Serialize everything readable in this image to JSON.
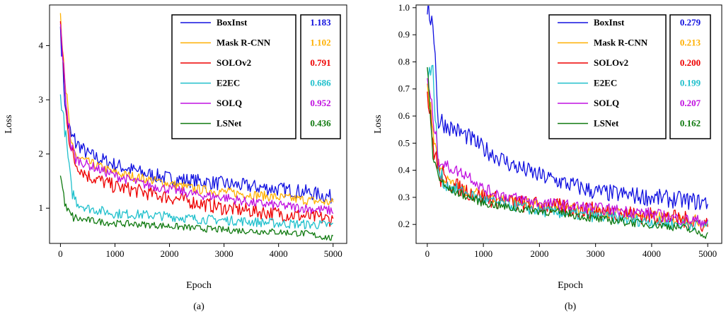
{
  "colors": {
    "BoxInst": "#1010e0",
    "Mask R-CNN": "#ffb000",
    "SOLOv2": "#ee0000",
    "E2EC": "#20c0cc",
    "SOLQ": "#c010e0",
    "LSNet": "#107a10"
  },
  "chart_data": [
    {
      "type": "line",
      "caption": "(a)",
      "xlabel": "Epoch",
      "ylabel": "Loss",
      "xlim": [
        -200,
        5250
      ],
      "ylim": [
        0.35,
        4.75
      ],
      "xticks": [
        0,
        1000,
        2000,
        3000,
        4000,
        5000
      ],
      "yticks": [
        1,
        2,
        3,
        4
      ],
      "legend_placement": "top-right",
      "x": [
        0,
        100,
        200,
        300,
        500,
        750,
        1000,
        1500,
        2000,
        2500,
        3000,
        3500,
        4000,
        4500,
        5000
      ],
      "series": [
        {
          "name": "BoxInst",
          "value_label": "1.183",
          "values": [
            4.35,
            2.7,
            2.3,
            2.2,
            2.0,
            1.9,
            1.8,
            1.65,
            1.55,
            1.5,
            1.45,
            1.4,
            1.35,
            1.3,
            1.2
          ]
        },
        {
          "name": "Mask R-CNN",
          "value_label": "1.102",
          "values": [
            4.6,
            3.2,
            2.1,
            1.95,
            1.85,
            1.75,
            1.65,
            1.55,
            1.45,
            1.35,
            1.3,
            1.25,
            1.2,
            1.15,
            1.1
          ]
        },
        {
          "name": "SOLOv2",
          "value_label": "0.791",
          "values": [
            4.45,
            2.9,
            2.0,
            1.8,
            1.6,
            1.5,
            1.4,
            1.3,
            1.2,
            1.1,
            1.0,
            0.95,
            0.9,
            0.85,
            0.79
          ]
        },
        {
          "name": "E2EC",
          "value_label": "0.686",
          "values": [
            3.1,
            2.3,
            1.35,
            1.1,
            1.0,
            0.95,
            0.9,
            0.88,
            0.85,
            0.8,
            0.78,
            0.75,
            0.72,
            0.7,
            0.69
          ]
        },
        {
          "name": "SOLQ",
          "value_label": "0.952",
          "values": [
            4.4,
            3.0,
            2.1,
            1.9,
            1.8,
            1.7,
            1.6,
            1.45,
            1.35,
            1.25,
            1.2,
            1.1,
            1.05,
            1.0,
            0.95
          ]
        },
        {
          "name": "LSNet",
          "value_label": "0.436",
          "values": [
            1.6,
            1.0,
            0.85,
            0.8,
            0.78,
            0.75,
            0.72,
            0.7,
            0.67,
            0.63,
            0.6,
            0.58,
            0.56,
            0.53,
            0.44
          ]
        }
      ]
    },
    {
      "type": "line",
      "caption": "(b)",
      "xlabel": "Epoch",
      "ylabel": "Loss",
      "xlim": [
        -200,
        5250
      ],
      "ylim": [
        0.13,
        1.01
      ],
      "xticks": [
        0,
        1000,
        2000,
        3000,
        4000,
        5000
      ],
      "yticks": [
        0.2,
        0.3,
        0.4,
        0.5,
        0.6,
        0.7,
        0.8,
        0.9,
        1.0
      ],
      "legend_placement": "top-right",
      "x": [
        0,
        100,
        200,
        300,
        500,
        750,
        1000,
        1500,
        2000,
        2500,
        3000,
        3500,
        4000,
        4500,
        5000
      ],
      "series": [
        {
          "name": "BoxInst",
          "value_label": "0.279",
          "values": [
            0.975,
            0.97,
            0.58,
            0.57,
            0.55,
            0.52,
            0.48,
            0.42,
            0.38,
            0.35,
            0.32,
            0.31,
            0.3,
            0.29,
            0.28
          ]
        },
        {
          "name": "Mask R-CNN",
          "value_label": "0.213",
          "values": [
            0.72,
            0.55,
            0.42,
            0.37,
            0.34,
            0.32,
            0.31,
            0.29,
            0.27,
            0.26,
            0.25,
            0.24,
            0.23,
            0.22,
            0.21
          ]
        },
        {
          "name": "SOLOv2",
          "value_label": "0.200",
          "values": [
            0.69,
            0.5,
            0.4,
            0.36,
            0.34,
            0.32,
            0.3,
            0.28,
            0.27,
            0.26,
            0.25,
            0.24,
            0.23,
            0.22,
            0.2
          ]
        },
        {
          "name": "E2EC",
          "value_label": "0.199",
          "values": [
            0.78,
            0.76,
            0.4,
            0.35,
            0.33,
            0.31,
            0.29,
            0.27,
            0.25,
            0.24,
            0.23,
            0.22,
            0.21,
            0.2,
            0.2
          ]
        },
        {
          "name": "SOLQ",
          "value_label": "0.207",
          "values": [
            0.74,
            0.6,
            0.45,
            0.42,
            0.4,
            0.38,
            0.33,
            0.3,
            0.28,
            0.27,
            0.26,
            0.25,
            0.24,
            0.22,
            0.21
          ]
        },
        {
          "name": "LSNet",
          "value_label": "0.162",
          "values": [
            0.78,
            0.45,
            0.38,
            0.34,
            0.32,
            0.3,
            0.28,
            0.26,
            0.25,
            0.24,
            0.22,
            0.21,
            0.2,
            0.19,
            0.16
          ]
        }
      ]
    }
  ]
}
